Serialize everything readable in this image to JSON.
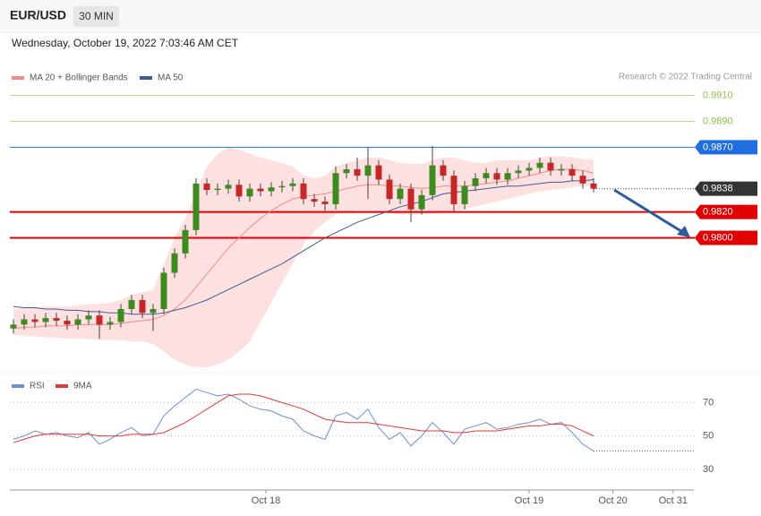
{
  "header": {
    "symbol": "EUR/USD",
    "interval": "30 MIN",
    "timestamp": "Wednesday, October 19, 2022 7:03:46 AM CET",
    "credit": "Research © 2022 Trading Central"
  },
  "chart_data": [
    {
      "type": "candlestick",
      "up_color": "#3d8b1e",
      "down_color": "#c62828",
      "xlim": [
        -0.5,
        63.5
      ],
      "ylim": [
        0.97,
        0.9918
      ],
      "xticks": [
        {
          "value": 23.5,
          "label": "Oct 18"
        },
        {
          "value": 48,
          "label": "Oct 19"
        },
        {
          "value": 55.8,
          "label": "Oct 20"
        },
        {
          "value": 61.4,
          "label": "Oct 31"
        }
      ],
      "open": [
        0.973,
        0.9733,
        0.9737,
        0.9735,
        0.9738,
        0.9736,
        0.9733,
        0.9737,
        0.974,
        0.9733,
        0.9735,
        0.9745,
        0.9752,
        0.9742,
        0.9745,
        0.9773,
        0.9788,
        0.9806,
        0.9842,
        0.9837,
        0.9838,
        0.9841,
        0.9832,
        0.9838,
        0.9836,
        0.9839,
        0.984,
        0.9842,
        0.983,
        0.9828,
        0.9826,
        0.985,
        0.9853,
        0.9848,
        0.9856,
        0.9845,
        0.983,
        0.9838,
        0.9822,
        0.9833,
        0.9856,
        0.9848,
        0.9826,
        0.984,
        0.9846,
        0.985,
        0.9845,
        0.985,
        0.9852,
        0.9854,
        0.9858,
        0.9852,
        0.9853,
        0.9848,
        0.9842
      ],
      "high": [
        0.9737,
        0.9741,
        0.9741,
        0.9742,
        0.9742,
        0.974,
        0.9741,
        0.9744,
        0.9744,
        0.9739,
        0.9749,
        0.9756,
        0.9756,
        0.9749,
        0.9777,
        0.9792,
        0.981,
        0.9846,
        0.9846,
        0.9842,
        0.9845,
        0.9845,
        0.9842,
        0.9842,
        0.9843,
        0.9844,
        0.9846,
        0.9846,
        0.9834,
        0.9832,
        0.9855,
        0.9857,
        0.9862,
        0.987,
        0.986,
        0.9849,
        0.9842,
        0.9842,
        0.9837,
        0.9871,
        0.986,
        0.9852,
        0.9844,
        0.985,
        0.9854,
        0.9854,
        0.9854,
        0.9856,
        0.9858,
        0.9862,
        0.9862,
        0.9857,
        0.9857,
        0.9852,
        0.9846
      ],
      "low": [
        0.9726,
        0.9729,
        0.9731,
        0.9731,
        0.9732,
        0.9729,
        0.9729,
        0.9733,
        0.9722,
        0.9729,
        0.9731,
        0.9741,
        0.9738,
        0.9728,
        0.9741,
        0.9769,
        0.9784,
        0.9802,
        0.9833,
        0.9833,
        0.9834,
        0.9828,
        0.9828,
        0.9832,
        0.9832,
        0.9835,
        0.9836,
        0.9826,
        0.9824,
        0.9821,
        0.9822,
        0.9846,
        0.9844,
        0.983,
        0.9841,
        0.9826,
        0.9826,
        0.9812,
        0.9818,
        0.9829,
        0.9844,
        0.982,
        0.9822,
        0.9836,
        0.9842,
        0.9841,
        0.9841,
        0.9846,
        0.9848,
        0.985,
        0.9848,
        0.9848,
        0.9844,
        0.9838,
        0.9835
      ],
      "close": [
        0.9733,
        0.9737,
        0.9735,
        0.9738,
        0.9736,
        0.9733,
        0.9737,
        0.974,
        0.9733,
        0.9735,
        0.9745,
        0.9752,
        0.9742,
        0.9745,
        0.9773,
        0.9788,
        0.9806,
        0.9842,
        0.9837,
        0.9838,
        0.9841,
        0.9832,
        0.9838,
        0.9836,
        0.9839,
        0.984,
        0.9842,
        0.983,
        0.9828,
        0.9826,
        0.985,
        0.9853,
        0.9848,
        0.9856,
        0.9845,
        0.983,
        0.9838,
        0.9822,
        0.9833,
        0.9856,
        0.9848,
        0.9826,
        0.984,
        0.9846,
        0.985,
        0.9845,
        0.985,
        0.9852,
        0.9854,
        0.9858,
        0.9852,
        0.9853,
        0.9848,
        0.9842,
        0.9838
      ],
      "series": [
        {
          "name": "MA 20 + Bollinger Bands",
          "color": "#f28b82",
          "values": [
            0.973,
            0.9731,
            0.9731,
            0.9732,
            0.9732,
            0.9732,
            0.9733,
            0.9733,
            0.9733,
            0.9733,
            0.9734,
            0.9735,
            0.9736,
            0.9737,
            0.974,
            0.9745,
            0.9752,
            0.9762,
            0.9772,
            0.9782,
            0.9792,
            0.98,
            0.9808,
            0.9815,
            0.9821,
            0.9826,
            0.983,
            0.9832,
            0.9833,
            0.9834,
            0.9836,
            0.9838,
            0.984,
            0.9841,
            0.9841,
            0.984,
            0.984,
            0.9839,
            0.9838,
            0.9839,
            0.984,
            0.984,
            0.984,
            0.9841,
            0.9842,
            0.9843,
            0.9844,
            0.9846,
            0.9848,
            0.985,
            0.9852,
            0.9853,
            0.9853,
            0.9852,
            0.985
          ]
        },
        {
          "name": "MA 50",
          "color": "#3d5a99",
          "values": [
            0.9747,
            0.9746,
            0.9746,
            0.9745,
            0.9745,
            0.9744,
            0.9744,
            0.9743,
            0.9743,
            0.9742,
            0.9742,
            0.9741,
            0.9741,
            0.9741,
            0.9742,
            0.9744,
            0.9746,
            0.9749,
            0.9752,
            0.9756,
            0.976,
            0.9764,
            0.9768,
            0.9772,
            0.9776,
            0.978,
            0.9785,
            0.979,
            0.9795,
            0.98,
            0.9804,
            0.9808,
            0.9812,
            0.9815,
            0.9818,
            0.9821,
            0.9824,
            0.9826,
            0.9828,
            0.9831,
            0.9834,
            0.9835,
            0.9836,
            0.9837,
            0.9838,
            0.9839,
            0.984,
            0.984,
            0.9841,
            0.9842,
            0.9843,
            0.9843,
            0.9844,
            0.9844,
            0.9845
          ]
        }
      ],
      "bands": {
        "color": "#fde0e0",
        "upper": [
          0.9745,
          0.9746,
          0.9746,
          0.9747,
          0.9747,
          0.9747,
          0.9748,
          0.9749,
          0.9749,
          0.975,
          0.9752,
          0.9756,
          0.9758,
          0.976,
          0.978,
          0.98,
          0.9815,
          0.9835,
          0.9855,
          0.9865,
          0.987,
          0.9868,
          0.9865,
          0.9862,
          0.986,
          0.9858,
          0.9855,
          0.9848,
          0.9846,
          0.9848,
          0.9855,
          0.9858,
          0.986,
          0.9862,
          0.9862,
          0.986,
          0.9858,
          0.9857,
          0.9857,
          0.986,
          0.9862,
          0.9862,
          0.986,
          0.9858,
          0.9858,
          0.986,
          0.986,
          0.986,
          0.986,
          0.9862,
          0.9863,
          0.9863,
          0.9862,
          0.9861,
          0.986
        ],
        "lower": [
          0.9725,
          0.9724,
          0.9724,
          0.9723,
          0.9723,
          0.9722,
          0.9722,
          0.9722,
          0.9721,
          0.9721,
          0.9721,
          0.972,
          0.972,
          0.9718,
          0.9712,
          0.9706,
          0.9702,
          0.97,
          0.97,
          0.9702,
          0.9706,
          0.9712,
          0.972,
          0.9735,
          0.975,
          0.9765,
          0.978,
          0.9795,
          0.9805,
          0.9812,
          0.9818,
          0.982,
          0.9821,
          0.9821,
          0.982,
          0.9819,
          0.9818,
          0.9818,
          0.9818,
          0.9819,
          0.982,
          0.9821,
          0.9822,
          0.9824,
          0.9826,
          0.9828,
          0.983,
          0.9832,
          0.9834,
          0.9836,
          0.9837,
          0.9838,
          0.9839,
          0.984,
          0.984
        ]
      },
      "levels": [
        {
          "value": 0.991,
          "label": "0.9910",
          "color": "#8bc34a",
          "style": "text"
        },
        {
          "value": 0.989,
          "label": "0.9890",
          "color": "#8bc34a",
          "style": "text"
        },
        {
          "value": 0.987,
          "label": "0.9870",
          "color": "#1f6fe0",
          "style": "box"
        },
        {
          "value": 0.9838,
          "label": "0.9838",
          "color": "#333333",
          "style": "current"
        },
        {
          "value": 0.982,
          "label": "0.9820",
          "color": "#e00000",
          "style": "box"
        },
        {
          "value": 0.98,
          "label": "0.9800",
          "color": "#e00000",
          "style": "box"
        }
      ]
    },
    {
      "type": "line",
      "xlim": [
        -0.5,
        63.5
      ],
      "ylim": [
        20,
        82
      ],
      "yticks": [
        30,
        50,
        70
      ],
      "series": [
        {
          "name": "RSI",
          "color": "#6b8fd6",
          "values": [
            48,
            50,
            53,
            51,
            52,
            50,
            49,
            52,
            45,
            48,
            52,
            55,
            50,
            51,
            62,
            68,
            73,
            78,
            76,
            74,
            75,
            72,
            68,
            66,
            65,
            62,
            60,
            53,
            50,
            48,
            62,
            64,
            60,
            66,
            55,
            48,
            52,
            44,
            50,
            58,
            52,
            45,
            54,
            56,
            58,
            54,
            55,
            57,
            58,
            60,
            57,
            58,
            52,
            45,
            41
          ]
        },
        {
          "name": "9MA",
          "color": "#e53935",
          "values": [
            46,
            48,
            50,
            51,
            51,
            51,
            51,
            51,
            50,
            50,
            50,
            51,
            51,
            51,
            52,
            55,
            58,
            62,
            66,
            70,
            74,
            75,
            75,
            74,
            72,
            70,
            68,
            66,
            63,
            60,
            59,
            58,
            58,
            58,
            57,
            56,
            55,
            54,
            53,
            53,
            53,
            52,
            52,
            53,
            53,
            53,
            54,
            55,
            56,
            56,
            57,
            57,
            56,
            53,
            50
          ]
        }
      ]
    }
  ]
}
